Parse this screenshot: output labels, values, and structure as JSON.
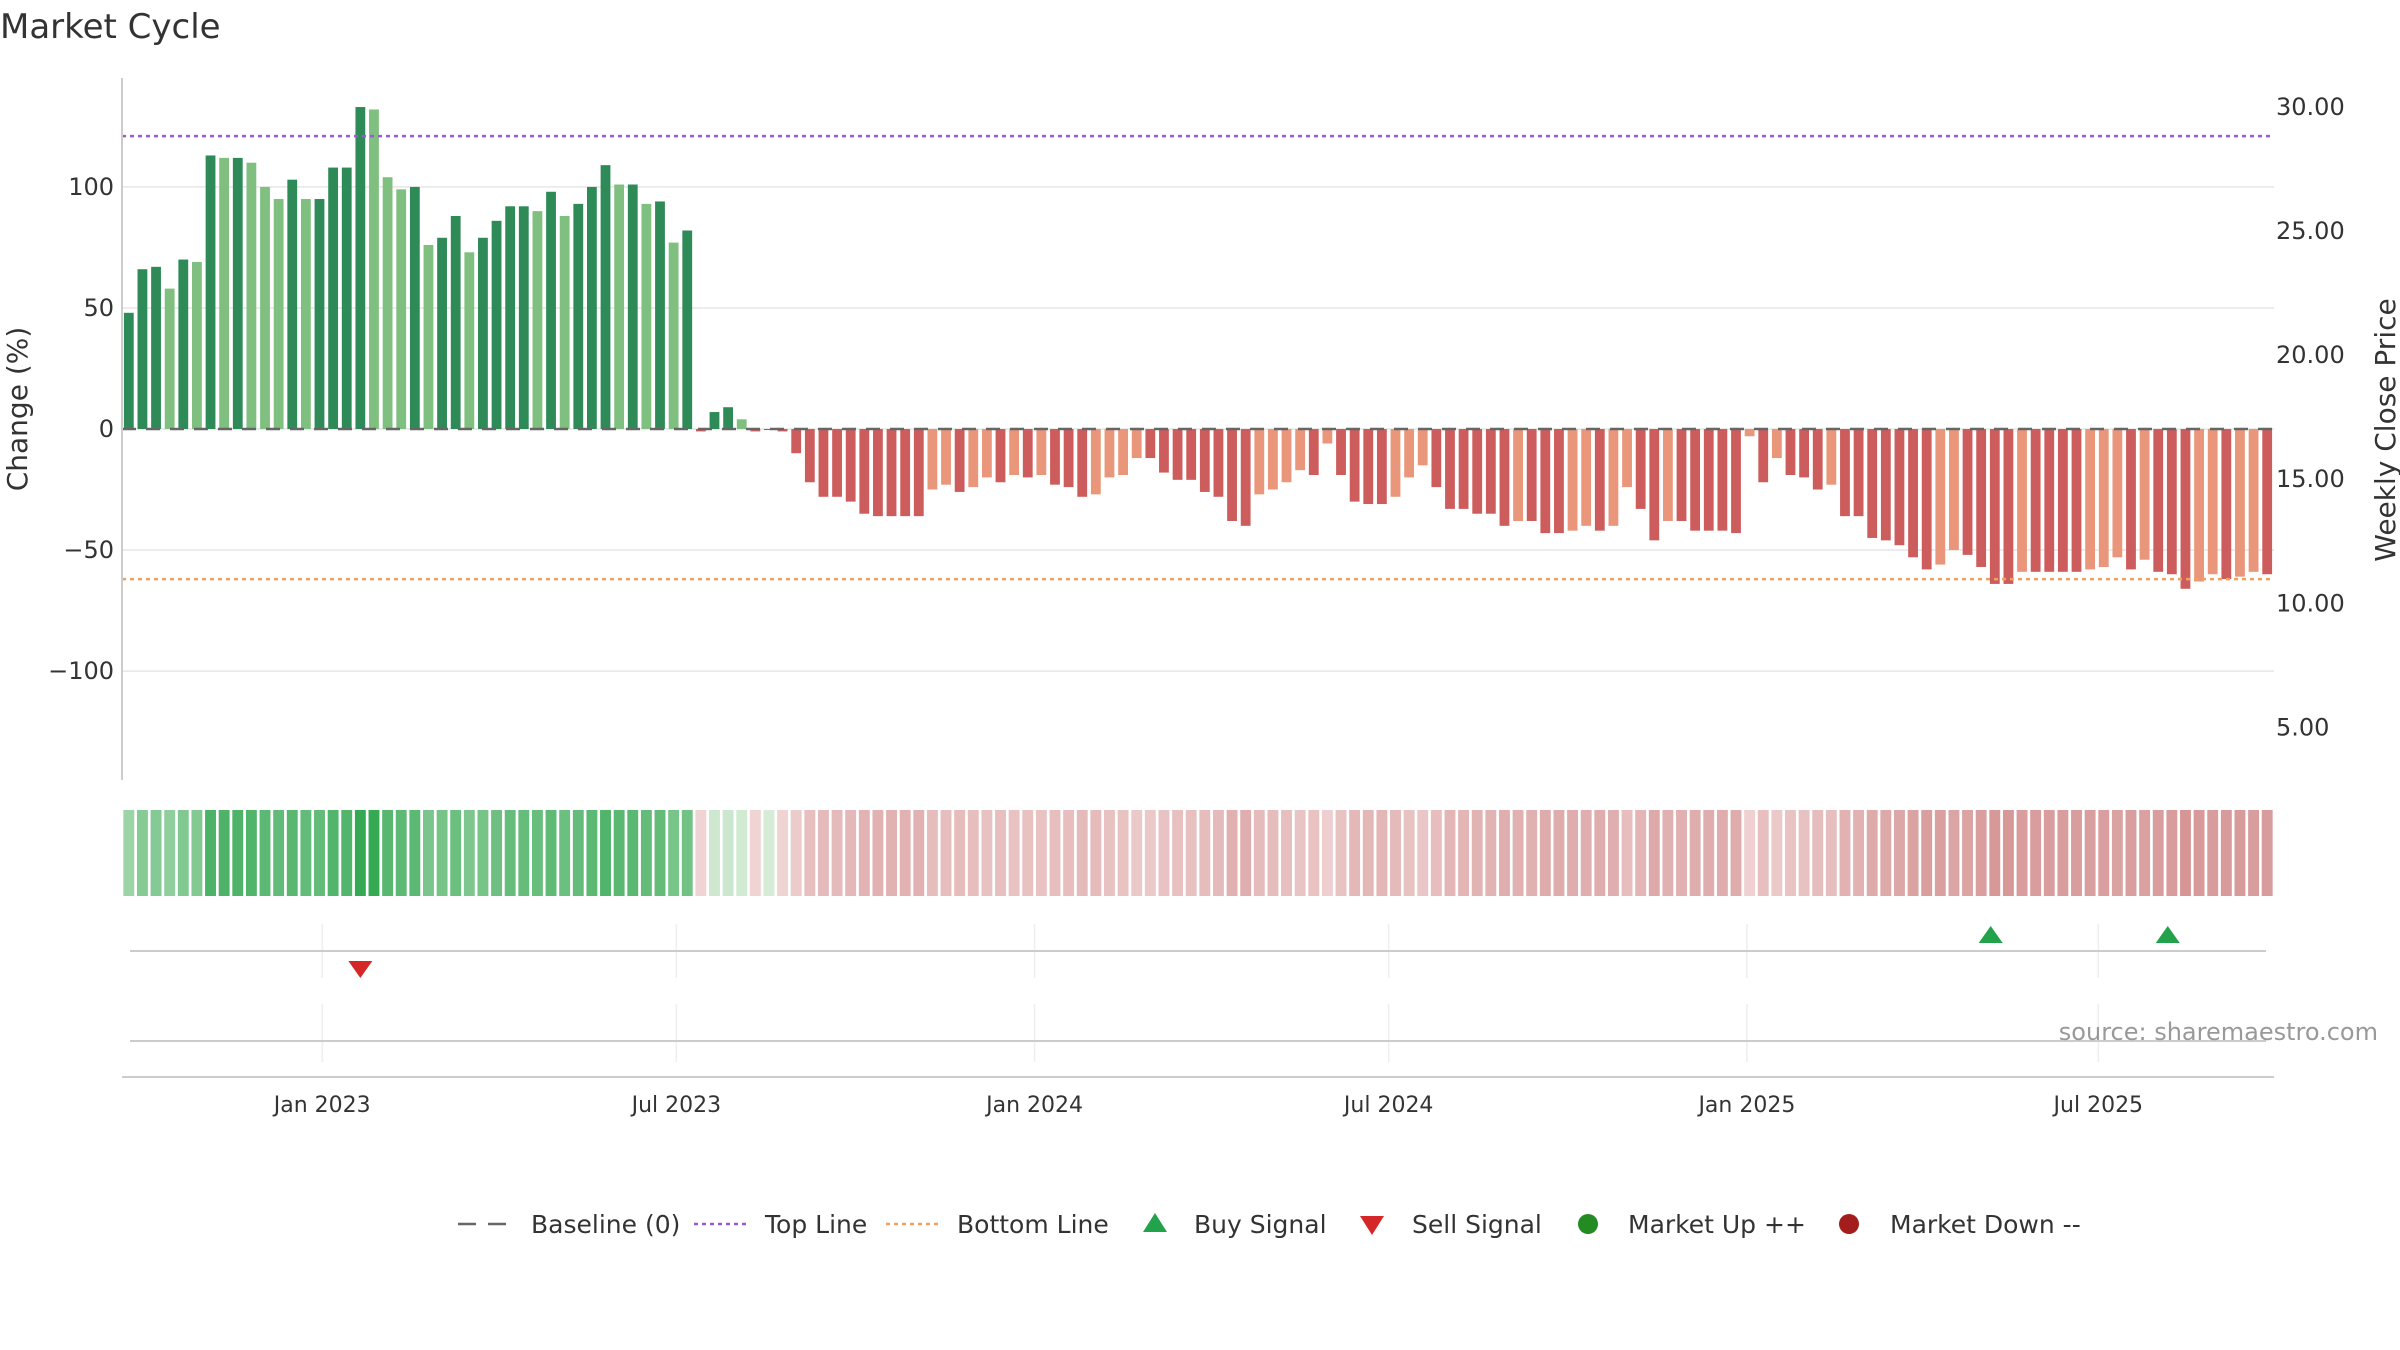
{
  "chart_data": {
    "type": "bar",
    "title": "Market Cycle",
    "ylabel_left": "Change (%)",
    "ylabel_right": "Weekly Close Price",
    "source_text": "source: sharemaestro.com",
    "y_left_range": [
      -145,
      145
    ],
    "y_left_ticks": [
      100,
      50,
      0,
      -50,
      -100
    ],
    "y_left_tick_labels": [
      "100",
      "50",
      "0",
      "−50",
      "−100"
    ],
    "y_right_range": [
      2.88,
      31.16
    ],
    "y_right_ticks": [
      5,
      10,
      15,
      20,
      25,
      30
    ],
    "y_right_tick_labels": [
      "5.00",
      "10.00",
      "15.00",
      "20.00",
      "25.00",
      "30.00"
    ],
    "x_tick_labels": [
      "Jan 2023",
      "Jul 2023",
      "Jan 2024",
      "Jul 2024",
      "Jan 2025",
      "Jul 2025"
    ],
    "x_tick_positions": [
      14.7,
      40.7,
      67,
      93,
      119.3,
      145.1
    ],
    "top_line": 121,
    "bottom_line": -62,
    "baseline": 0,
    "weekly_change_pct": [
      48,
      66,
      67,
      58,
      70,
      69,
      113,
      112,
      112,
      110,
      100,
      95,
      103,
      95,
      95,
      108,
      108,
      133,
      132,
      104,
      99,
      100,
      76,
      79,
      88,
      73,
      79,
      86,
      92,
      92,
      90,
      98,
      88,
      93,
      100,
      109,
      101,
      101,
      93,
      94,
      77,
      82,
      -1,
      7,
      9,
      4,
      -1,
      0,
      -1,
      -10,
      -22,
      -28,
      -28,
      -30,
      -35,
      -36,
      -36,
      -36,
      -36,
      -25,
      -23,
      -26,
      -24,
      -20,
      -22,
      -19,
      -20,
      -19,
      -23,
      -24,
      -28,
      -27,
      -20,
      -19,
      -12,
      -12,
      -18,
      -21,
      -21,
      -26,
      -28,
      -38,
      -40,
      -27,
      -25,
      -22,
      -17,
      -19,
      -6,
      -19,
      -30,
      -31,
      -31,
      -28,
      -20,
      -15,
      -24,
      -33,
      -33,
      -35,
      -35,
      -40,
      -38,
      -38,
      -43,
      -43,
      -42,
      -40,
      -42,
      -40,
      -24,
      -33,
      -46,
      -38,
      -38,
      -42,
      -42,
      -42,
      -43,
      -3,
      -22,
      -12,
      -19,
      -20,
      -25,
      -23,
      -36,
      -36,
      -45,
      -46,
      -48,
      -53,
      -58,
      -56,
      -50,
      -52,
      -57,
      -64,
      -64,
      -59,
      -59,
      -59,
      -59,
      -59,
      -58,
      -57,
      -53,
      -58,
      -54,
      -59,
      -60,
      -66,
      -63,
      -60,
      -62,
      -61,
      -59,
      -60
    ],
    "signals": {
      "buy": [
        {
          "x": 137.2,
          "label": "Buy Signal"
        },
        {
          "x": 150.2,
          "label": "Buy Signal"
        }
      ],
      "sell": [
        {
          "x": 17.5,
          "label": "Sell Signal"
        }
      ]
    },
    "colors": {
      "strong_up": "#2e8b57",
      "up": "#7fbf7f",
      "strong_down": "#cd5c5c",
      "down": "#e9967a",
      "top_line": "#9b59d6",
      "bottom_line": "#f0a060",
      "baseline": "#666666",
      "buy": "#22a24a",
      "sell": "#d62728",
      "market_up": "#228b22",
      "market_down": "#a31d1d"
    },
    "legend": [
      {
        "label": "Baseline (0)",
        "marker": "dash"
      },
      {
        "label": "Top Line",
        "marker": "dotted-purple"
      },
      {
        "label": "Bottom Line",
        "marker": "dotted-orange"
      },
      {
        "label": "Buy Signal",
        "marker": "triangle-up"
      },
      {
        "label": "Sell Signal",
        "marker": "triangle-down"
      },
      {
        "label": "Market Up ++",
        "marker": "dot-green"
      },
      {
        "label": "Market Down --",
        "marker": "dot-red"
      }
    ],
    "legend_position": "bottom-center"
  }
}
